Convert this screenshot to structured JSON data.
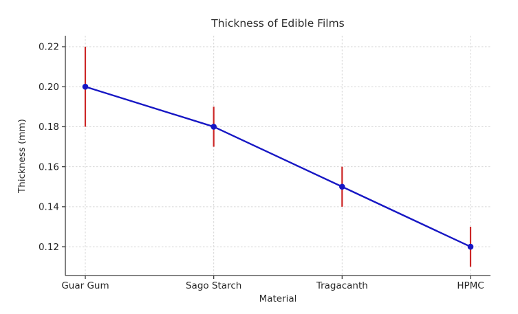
{
  "chart_data": {
    "type": "line",
    "title": "Thickness of Edible Films",
    "xlabel": "Material",
    "ylabel": "Thickness (mm)",
    "categories": [
      "Guar Gum",
      "Sago Starch",
      "Tragacanth",
      "HPMC"
    ],
    "series": [
      {
        "name": "Thickness",
        "values": [
          0.2,
          0.18,
          0.15,
          0.12
        ],
        "errors": [
          0.02,
          0.01,
          0.01,
          0.01
        ]
      }
    ],
    "yticks": [
      0.12,
      0.14,
      0.16,
      0.18,
      0.2,
      0.22
    ],
    "ylim": [
      0.1056,
      0.2255
    ],
    "grid": true,
    "grid_style": "dashed",
    "legend": "none",
    "colors": {
      "line": "#1717c4",
      "marker": "#1717c4",
      "error_bar": "#cc2626",
      "grid": "#d6d6d6",
      "spine": "#3c3c3c",
      "text": "#262626",
      "background": "#ffffff"
    }
  }
}
